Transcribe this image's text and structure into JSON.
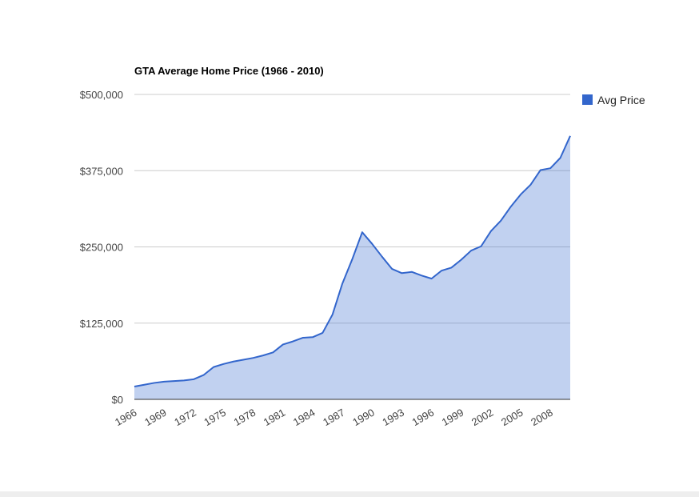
{
  "chart_data": {
    "type": "area",
    "title": "GTA Average Home Price (1966 - 2010)",
    "xlabel": "",
    "ylabel": "",
    "ylim": [
      0,
      500000
    ],
    "y_ticks": [
      "$0",
      "$125,000",
      "$250,000",
      "$375,000",
      "$500,000"
    ],
    "y_tick_values": [
      0,
      125000,
      250000,
      375000,
      500000
    ],
    "x_tick_labels": [
      "1966",
      "1969",
      "1972",
      "1975",
      "1978",
      "1981",
      "1984",
      "1987",
      "1990",
      "1993",
      "1996",
      "1999",
      "2002",
      "2005",
      "2008"
    ],
    "grid": true,
    "legend_position": "right",
    "series": [
      {
        "name": "Avg Price",
        "color": "#3366cc",
        "x": [
          1966,
          1967,
          1968,
          1969,
          1970,
          1971,
          1972,
          1973,
          1974,
          1975,
          1976,
          1977,
          1978,
          1979,
          1980,
          1981,
          1982,
          1983,
          1984,
          1985,
          1986,
          1987,
          1988,
          1989,
          1990,
          1991,
          1992,
          1993,
          1994,
          1995,
          1996,
          1997,
          1998,
          1999,
          2000,
          2001,
          2002,
          2003,
          2004,
          2005,
          2006,
          2007,
          2008,
          2009,
          2010
        ],
        "values": [
          21000,
          24000,
          27000,
          29000,
          30000,
          31000,
          33000,
          40000,
          53000,
          58000,
          62000,
          65000,
          68000,
          72000,
          77000,
          90000,
          95000,
          101000,
          102000,
          109000,
          139000,
          190000,
          230000,
          274000,
          255000,
          234000,
          214000,
          207000,
          209000,
          203000,
          198000,
          211000,
          216000,
          229000,
          244000,
          251000,
          276000,
          293000,
          316000,
          336000,
          352000,
          376000,
          379000,
          396000,
          432000
        ]
      }
    ]
  }
}
